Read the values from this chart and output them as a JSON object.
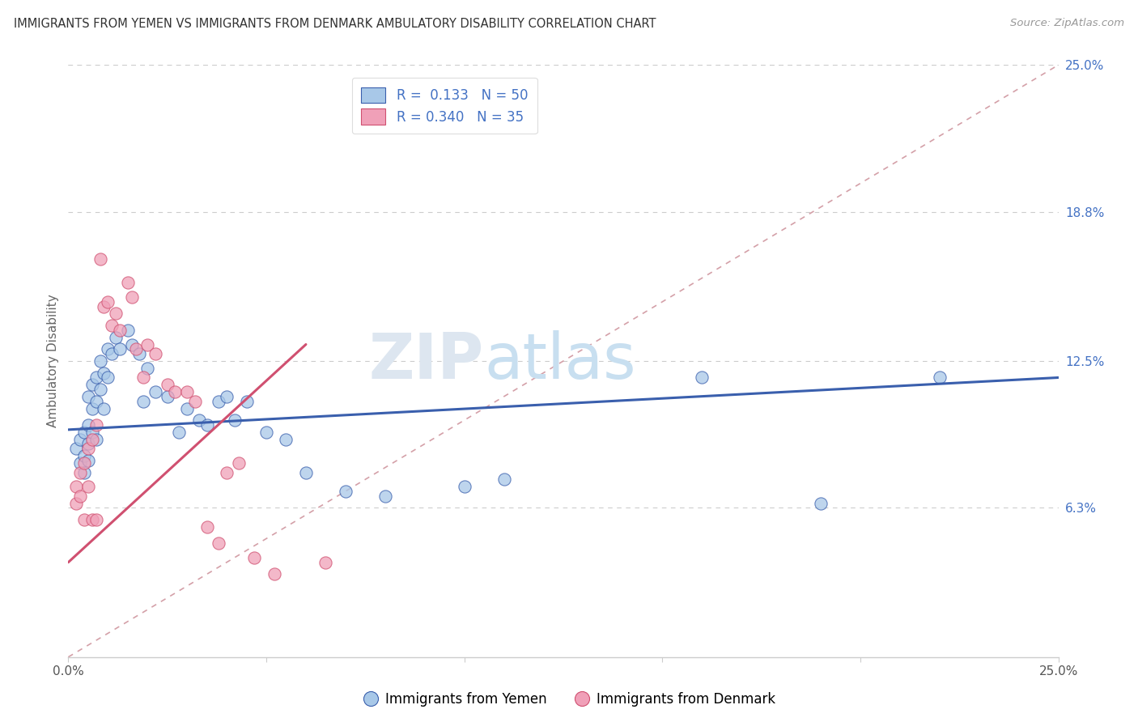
{
  "title": "IMMIGRANTS FROM YEMEN VS IMMIGRANTS FROM DENMARK AMBULATORY DISABILITY CORRELATION CHART",
  "source": "Source: ZipAtlas.com",
  "ylabel": "Ambulatory Disability",
  "xlim": [
    0.0,
    0.25
  ],
  "ylim": [
    0.0,
    0.25
  ],
  "ytick_labels_right": [
    "25.0%",
    "18.8%",
    "12.5%",
    "6.3%"
  ],
  "ytick_positions_right": [
    0.25,
    0.188,
    0.125,
    0.063
  ],
  "color_yemen": "#a8c8e8",
  "color_denmark": "#f0a0b8",
  "color_line_yemen": "#3a5fad",
  "color_line_denmark": "#d05070",
  "color_line_diagonal": "#d4a0a8",
  "watermark_zip": "ZIP",
  "watermark_atlas": "atlas",
  "yemen_line_x0": 0.0,
  "yemen_line_y0": 0.096,
  "yemen_line_x1": 0.25,
  "yemen_line_y1": 0.118,
  "denmark_line_x0": 0.0,
  "denmark_line_y0": 0.04,
  "denmark_line_x1": 0.06,
  "denmark_line_y1": 0.132,
  "yemen_x": [
    0.002,
    0.003,
    0.003,
    0.004,
    0.004,
    0.004,
    0.005,
    0.005,
    0.005,
    0.005,
    0.006,
    0.006,
    0.006,
    0.007,
    0.007,
    0.007,
    0.008,
    0.008,
    0.009,
    0.009,
    0.01,
    0.01,
    0.011,
    0.012,
    0.013,
    0.015,
    0.016,
    0.018,
    0.019,
    0.02,
    0.022,
    0.025,
    0.028,
    0.03,
    0.033,
    0.035,
    0.038,
    0.04,
    0.042,
    0.045,
    0.05,
    0.055,
    0.06,
    0.07,
    0.08,
    0.1,
    0.11,
    0.16,
    0.19,
    0.22
  ],
  "yemen_y": [
    0.088,
    0.092,
    0.082,
    0.095,
    0.085,
    0.078,
    0.11,
    0.098,
    0.09,
    0.083,
    0.115,
    0.105,
    0.095,
    0.118,
    0.108,
    0.092,
    0.125,
    0.113,
    0.12,
    0.105,
    0.13,
    0.118,
    0.128,
    0.135,
    0.13,
    0.138,
    0.132,
    0.128,
    0.108,
    0.122,
    0.112,
    0.11,
    0.095,
    0.105,
    0.1,
    0.098,
    0.108,
    0.11,
    0.1,
    0.108,
    0.095,
    0.092,
    0.078,
    0.07,
    0.068,
    0.072,
    0.075,
    0.118,
    0.065,
    0.118
  ],
  "denmark_x": [
    0.002,
    0.002,
    0.003,
    0.003,
    0.004,
    0.004,
    0.005,
    0.005,
    0.006,
    0.006,
    0.007,
    0.007,
    0.008,
    0.009,
    0.01,
    0.011,
    0.012,
    0.013,
    0.015,
    0.016,
    0.017,
    0.019,
    0.02,
    0.022,
    0.025,
    0.027,
    0.03,
    0.032,
    0.035,
    0.038,
    0.04,
    0.043,
    0.047,
    0.052,
    0.065
  ],
  "denmark_y": [
    0.072,
    0.065,
    0.078,
    0.068,
    0.082,
    0.058,
    0.088,
    0.072,
    0.092,
    0.058,
    0.098,
    0.058,
    0.168,
    0.148,
    0.15,
    0.14,
    0.145,
    0.138,
    0.158,
    0.152,
    0.13,
    0.118,
    0.132,
    0.128,
    0.115,
    0.112,
    0.112,
    0.108,
    0.055,
    0.048,
    0.078,
    0.082,
    0.042,
    0.035,
    0.04
  ]
}
